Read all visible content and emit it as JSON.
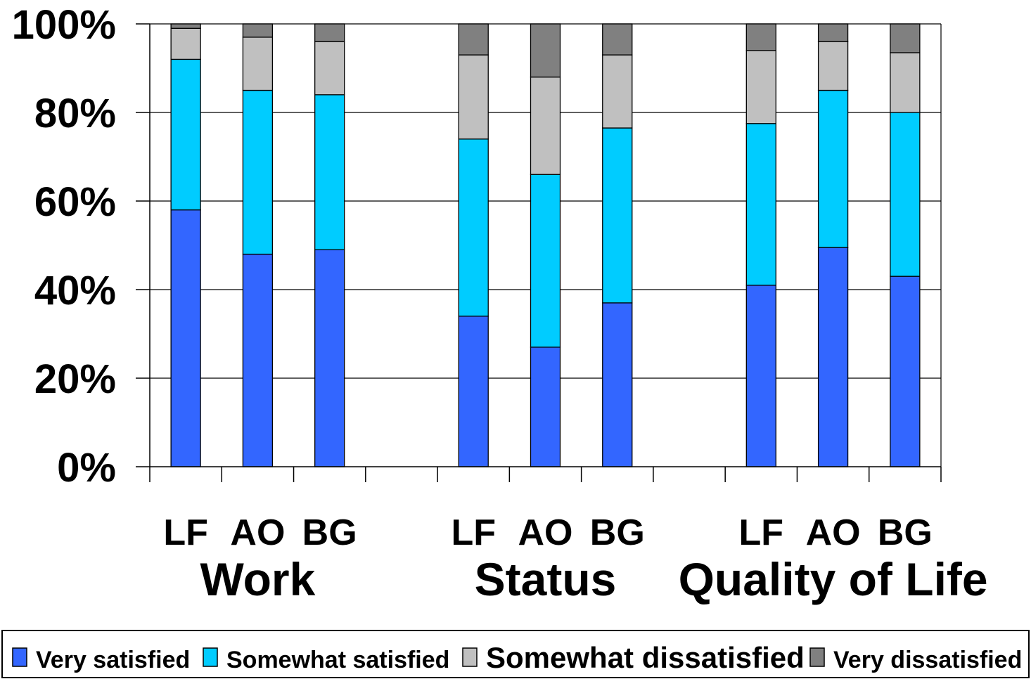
{
  "chart_data": {
    "type": "bar",
    "stacked": true,
    "categories": [
      "LF",
      "AO",
      "BG",
      "LF",
      "AO",
      "BG",
      "LF",
      "AO",
      "BG"
    ],
    "groups": [
      {
        "label": "Work",
        "members": [
          0,
          1,
          2
        ]
      },
      {
        "label": "Status",
        "members": [
          3,
          4,
          5
        ]
      },
      {
        "label": "Quality of Life",
        "members": [
          6,
          7,
          8
        ]
      }
    ],
    "series": [
      {
        "name": "Very satisfied",
        "color": "#3366ff",
        "values": [
          58,
          48,
          49,
          34,
          27,
          37,
          41,
          49.5,
          43
        ]
      },
      {
        "name": "Somewhat satisfied",
        "color": "#00ccff",
        "values": [
          34,
          37,
          35,
          40,
          39,
          39.5,
          36.5,
          35.5,
          37
        ]
      },
      {
        "name": "Somewhat dissatisfied",
        "color": "#c0c0c0",
        "values": [
          7,
          12,
          12,
          19,
          22,
          16.5,
          16.5,
          11,
          13.5
        ]
      },
      {
        "name": "Very dissatisfied",
        "color": "#808080",
        "values": [
          1,
          3,
          4,
          7,
          12,
          7,
          6,
          4,
          6.5
        ]
      }
    ],
    "yticks": [
      "0%",
      "20%",
      "40%",
      "60%",
      "80%",
      "100%"
    ],
    "ylim": [
      0,
      100
    ],
    "grid": true,
    "legend_position": "bottom"
  }
}
